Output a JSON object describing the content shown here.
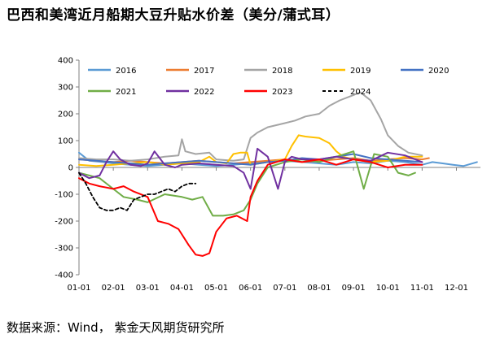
{
  "title": "巴西和美湾近月船期大豆升贴水价差（美分/蒲式耳）",
  "source": "数据来源：Wind， 紫金天风期货研究所",
  "colors": {
    "2016": "#5b9bd5",
    "2017": "#ed7d31",
    "2018": "#a5a5a5",
    "2019": "#ffc000",
    "2020": "#4472c4",
    "2021": "#70ad47",
    "2022": "#7030a0",
    "2023": "#ff0000",
    "2024": "#000000"
  },
  "chart_data": {
    "type": "line",
    "title": "巴西和美湾近月船期大豆升贴水价差（美分/蒲式耳）",
    "xlabel": "",
    "ylabel": "",
    "ylim": [
      -400,
      400
    ],
    "yticks": [
      -400,
      -300,
      -200,
      -100,
      0,
      100,
      200,
      300,
      400
    ],
    "xlim": [
      1,
      12.7
    ],
    "xticks": [
      "01-01",
      "02-01",
      "03-01",
      "04-01",
      "05-01",
      "06-01",
      "07-01",
      "08-01",
      "09-01",
      "10-01",
      "11-01",
      "12-01"
    ],
    "grid": false,
    "legend_position": "top",
    "series": [
      {
        "name": "2016",
        "style": "solid",
        "x": [
          1.0,
          1.3,
          1.7,
          2.0,
          2.5,
          3.0,
          3.5,
          4.0,
          4.5,
          5.0,
          5.5,
          6.0,
          6.5,
          7.0,
          7.5,
          8.0,
          8.5,
          9.0,
          9.5,
          10.0,
          10.5,
          11.0,
          11.3,
          11.6,
          11.9,
          12.2,
          12.6
        ],
        "y": [
          55,
          25,
          20,
          15,
          10,
          5,
          10,
          15,
          10,
          5,
          10,
          15,
          20,
          25,
          20,
          15,
          10,
          20,
          15,
          25,
          20,
          10,
          20,
          15,
          10,
          5,
          20
        ]
      },
      {
        "name": "2017",
        "style": "solid",
        "x": [
          1.0,
          1.5,
          2.0,
          2.5,
          3.0,
          3.5,
          4.0,
          4.5,
          5.0,
          5.5,
          6.0,
          6.5,
          7.0,
          7.5,
          8.0,
          8.5,
          9.0,
          9.5,
          10.0,
          10.5,
          11.0,
          11.2
        ],
        "y": [
          30,
          25,
          20,
          25,
          20,
          15,
          20,
          25,
          20,
          15,
          20,
          25,
          30,
          20,
          25,
          30,
          35,
          25,
          30,
          35,
          30,
          35
        ]
      },
      {
        "name": "2018",
        "style": "solid",
        "x": [
          1.0,
          1.5,
          2.0,
          2.5,
          3.0,
          3.5,
          3.9,
          4.0,
          4.1,
          4.4,
          4.8,
          5.0,
          5.5,
          5.8,
          6.0,
          6.2,
          6.5,
          7.0,
          7.3,
          7.6,
          8.0,
          8.3,
          8.6,
          9.0,
          9.2,
          9.5,
          9.8,
          10.0,
          10.3,
          10.6,
          11.0
        ],
        "y": [
          35,
          30,
          30,
          25,
          30,
          40,
          45,
          105,
          60,
          50,
          55,
          30,
          25,
          30,
          110,
          130,
          150,
          165,
          175,
          190,
          200,
          230,
          250,
          270,
          280,
          250,
          180,
          120,
          80,
          55,
          45
        ]
      },
      {
        "name": "2019",
        "style": "solid",
        "x": [
          1.0,
          1.5,
          2.0,
          2.5,
          3.0,
          3.5,
          4.0,
          4.5,
          4.8,
          5.0,
          5.3,
          5.5,
          5.7,
          5.9,
          6.0,
          6.5,
          7.0,
          7.2,
          7.4,
          7.6,
          8.0,
          8.3,
          8.5,
          8.7,
          9.0,
          9.5,
          10.0,
          10.5,
          11.0
        ],
        "y": [
          10,
          5,
          10,
          15,
          20,
          10,
          15,
          20,
          40,
          20,
          15,
          50,
          55,
          55,
          10,
          20,
          30,
          80,
          120,
          115,
          110,
          90,
          60,
          40,
          30,
          20,
          25,
          40,
          40
        ]
      },
      {
        "name": "2020",
        "style": "solid",
        "x": [
          1.0,
          1.5,
          2.0,
          2.5,
          3.0,
          3.5,
          4.0,
          4.5,
          5.0,
          5.5,
          6.0,
          6.5,
          7.0,
          7.5,
          8.0,
          8.5,
          9.0,
          9.5,
          10.0,
          10.5,
          11.0
        ],
        "y": [
          30,
          25,
          20,
          15,
          10,
          15,
          20,
          25,
          20,
          15,
          10,
          20,
          25,
          35,
          30,
          40,
          50,
          35,
          30,
          25,
          20
        ]
      },
      {
        "name": "2021",
        "style": "solid",
        "x": [
          1.0,
          1.3,
          1.6,
          2.0,
          2.3,
          2.7,
          3.0,
          3.5,
          4.0,
          4.3,
          4.6,
          4.9,
          5.2,
          5.5,
          5.8,
          6.0,
          6.2,
          6.5,
          7.0,
          7.5,
          8.0,
          8.5,
          9.0,
          9.3,
          9.6,
          10.0,
          10.3,
          10.6,
          10.8
        ],
        "y": [
          -20,
          -30,
          -40,
          -80,
          -110,
          -120,
          -130,
          -100,
          -110,
          -120,
          -110,
          -180,
          -180,
          -175,
          -160,
          -120,
          -60,
          0,
          20,
          30,
          20,
          40,
          60,
          -80,
          50,
          40,
          -20,
          -30,
          -20
        ]
      },
      {
        "name": "2022",
        "style": "solid",
        "x": [
          1.0,
          1.3,
          1.6,
          1.8,
          2.0,
          2.2,
          2.5,
          2.8,
          3.0,
          3.2,
          3.5,
          3.8,
          4.0,
          4.5,
          5.0,
          5.5,
          5.8,
          6.0,
          6.2,
          6.5,
          6.8,
          7.0,
          7.2,
          7.5,
          8.0,
          8.5,
          9.0,
          9.5,
          10.0,
          10.5,
          11.0
        ],
        "y": [
          -20,
          -40,
          -30,
          20,
          60,
          30,
          10,
          5,
          15,
          60,
          10,
          0,
          10,
          15,
          10,
          5,
          -20,
          -80,
          70,
          40,
          -80,
          20,
          40,
          30,
          30,
          40,
          30,
          25,
          55,
          45,
          20
        ]
      },
      {
        "name": "2023",
        "style": "solid",
        "x": [
          1.0,
          1.3,
          1.6,
          2.0,
          2.3,
          2.6,
          3.0,
          3.3,
          3.6,
          3.9,
          4.2,
          4.4,
          4.6,
          4.8,
          5.0,
          5.3,
          5.6,
          5.9,
          6.0,
          6.2,
          6.5,
          7.0,
          7.5,
          8.0,
          8.5,
          9.0,
          9.5,
          10.0,
          10.5,
          11.0
        ],
        "y": [
          -40,
          -60,
          -70,
          -80,
          -70,
          -90,
          -110,
          -200,
          -210,
          -230,
          -290,
          -325,
          -330,
          -320,
          -240,
          -190,
          -180,
          -200,
          -110,
          -50,
          10,
          30,
          20,
          30,
          10,
          30,
          20,
          0,
          10,
          10
        ]
      },
      {
        "name": "2024",
        "style": "dashed",
        "x": [
          1.0,
          1.2,
          1.4,
          1.6,
          1.8,
          2.0,
          2.2,
          2.4,
          2.6,
          2.8,
          3.0,
          3.2,
          3.4,
          3.6,
          3.8,
          4.0,
          4.2,
          4.4
        ],
        "y": [
          -20,
          -60,
          -110,
          -150,
          -160,
          -160,
          -150,
          -160,
          -120,
          -110,
          -100,
          -100,
          -90,
          -80,
          -90,
          -70,
          -60,
          -60
        ]
      }
    ]
  }
}
